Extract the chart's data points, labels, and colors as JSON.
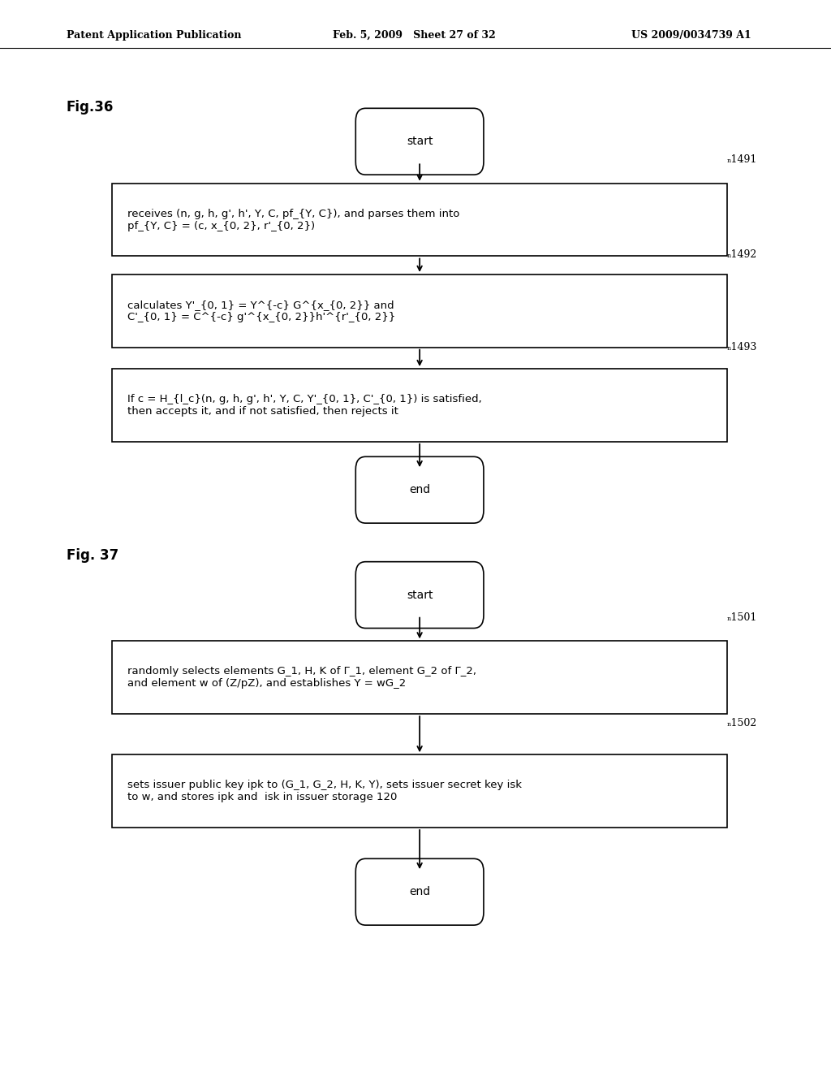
{
  "bg_color": "#ffffff",
  "header_left": "Patent Application Publication",
  "header_mid": "Feb. 5, 2009   Sheet 27 of 32",
  "header_right": "US 2009/0034739 A1",
  "fig36_label": "Fig.36",
  "fig37_label": "Fig. 37",
  "fig36_box1": "receives (n, g, h, g', h', Y, C, pf_{Y, C}), and parses them into\npf_{Y, C} = (c, x_{0, 2}, r'_{0, 2})",
  "fig36_box2": "calculates Y'_{0, 1} = Y^{-c} G^{x_{0, 2}} and\nC'_{0, 1} = C^{-c} g'^{x_{0, 2}}h'^{r'_{0, 2}}",
  "fig36_box3": "If c = H_{l_c}(n, g, h, g', h', Y, C, Y'_{0, 1}, C'_{0, 1}) is satisfied,\nthen accepts it, and if not satisfied, then rejects it",
  "fig37_box1": "randomly selects elements G_1, H, K of Γ_1, element G_2 of Γ_2,\nand element w of (Z/pZ), and establishes Y = wG_2",
  "fig37_box2": "sets issuer public key ipk to (G_1, G_2, H, K, Y), sets issuer secret key isk\nto w, and stores ipk and  isk in issuer storage 120",
  "ref1491": "ₙ1491",
  "ref1492": "ₙ1492",
  "ref1493": "ₙ1493",
  "ref1501": "ₙ1501",
  "ref1502": "ₙ1502"
}
